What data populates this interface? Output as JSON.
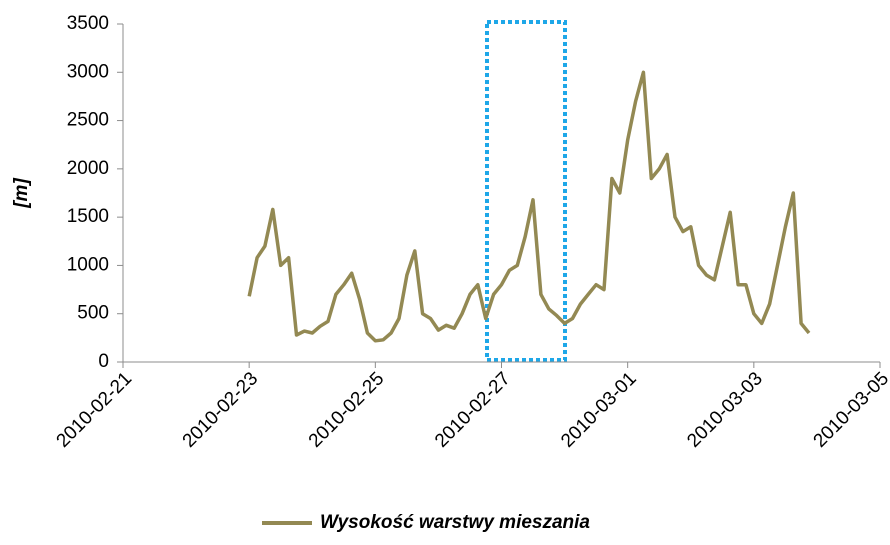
{
  "chart_data": {
    "type": "line",
    "ylabel": "[m]",
    "x": [
      "2010-02-23 00:00",
      "2010-02-23 03:00",
      "2010-02-23 06:00",
      "2010-02-23 09:00",
      "2010-02-23 12:00",
      "2010-02-23 15:00",
      "2010-02-23 18:00",
      "2010-02-23 21:00",
      "2010-02-24 00:00",
      "2010-02-24 03:00",
      "2010-02-24 06:00",
      "2010-02-24 09:00",
      "2010-02-24 12:00",
      "2010-02-24 15:00",
      "2010-02-24 18:00",
      "2010-02-24 21:00",
      "2010-02-25 00:00",
      "2010-02-25 03:00",
      "2010-02-25 06:00",
      "2010-02-25 09:00",
      "2010-02-25 12:00",
      "2010-02-25 15:00",
      "2010-02-25 18:00",
      "2010-02-25 21:00",
      "2010-02-26 00:00",
      "2010-02-26 03:00",
      "2010-02-26 06:00",
      "2010-02-26 09:00",
      "2010-02-26 12:00",
      "2010-02-26 15:00",
      "2010-02-26 18:00",
      "2010-02-26 21:00",
      "2010-02-27 00:00",
      "2010-02-27 03:00",
      "2010-02-27 06:00",
      "2010-02-27 09:00",
      "2010-02-27 12:00",
      "2010-02-27 15:00",
      "2010-02-27 18:00",
      "2010-02-27 21:00",
      "2010-02-28 00:00",
      "2010-02-28 03:00",
      "2010-02-28 06:00",
      "2010-02-28 09:00",
      "2010-02-28 12:00",
      "2010-02-28 15:00",
      "2010-02-28 18:00",
      "2010-02-28 21:00",
      "2010-03-01 00:00",
      "2010-03-01 03:00",
      "2010-03-01 06:00",
      "2010-03-01 09:00",
      "2010-03-01 12:00",
      "2010-03-01 15:00",
      "2010-03-01 18:00",
      "2010-03-01 21:00",
      "2010-03-02 00:00",
      "2010-03-02 03:00",
      "2010-03-02 06:00",
      "2010-03-02 09:00",
      "2010-03-02 12:00",
      "2010-03-02 15:00",
      "2010-03-02 18:00",
      "2010-03-02 21:00",
      "2010-03-03 00:00",
      "2010-03-03 03:00",
      "2010-03-03 06:00",
      "2010-03-03 09:00",
      "2010-03-03 12:00",
      "2010-03-03 15:00",
      "2010-03-03 18:00",
      "2010-03-03 21:00"
    ],
    "series": [
      {
        "name": "Wysokość warstwy mieszania",
        "color": "#938953",
        "values": [
          680,
          1080,
          1200,
          1580,
          1000,
          1080,
          280,
          320,
          300,
          370,
          420,
          700,
          800,
          920,
          650,
          300,
          220,
          230,
          300,
          450,
          900,
          1150,
          500,
          450,
          330,
          380,
          350,
          500,
          700,
          800,
          450,
          700,
          800,
          950,
          1000,
          1300,
          1680,
          700,
          550,
          480,
          400,
          450,
          600,
          700,
          800,
          750,
          1900,
          1750,
          2300,
          2700,
          3000,
          1900,
          2000,
          2150,
          1500,
          1350,
          1400,
          1000,
          900,
          850,
          1200,
          1550,
          800,
          800,
          500,
          400,
          600,
          1000,
          1400,
          1750,
          400,
          300
        ]
      }
    ],
    "xlim": [
      "2010-02-21",
      "2010-03-05"
    ],
    "xticks": [
      "2010-02-21",
      "2010-02-23",
      "2010-02-25",
      "2010-02-27",
      "2010-03-01",
      "2010-03-03",
      "2010-03-05"
    ],
    "ylim": [
      0,
      3500
    ],
    "yticks": [
      0,
      500,
      1000,
      1500,
      2000,
      2500,
      3000,
      3500
    ],
    "grid": true,
    "legend": "bottom"
  }
}
